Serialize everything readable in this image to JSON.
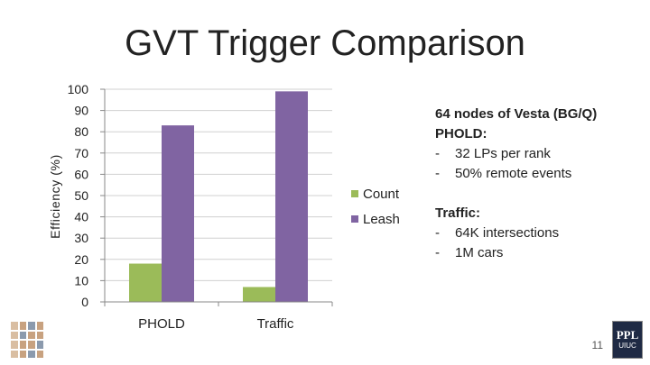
{
  "slide": {
    "title": "GVT Trigger Comparison",
    "page_number": "11"
  },
  "notes": {
    "heading1": "64 nodes of Vesta (BG/Q)",
    "heading2": "PHOLD:",
    "phold_items": [
      "32 LPs per rank",
      "50% remote events"
    ],
    "heading3": "Traffic:",
    "traffic_items": [
      "64K intersections",
      "1M cars"
    ]
  },
  "logos": {
    "right_line1": "PPL",
    "right_line2": "UIUC"
  },
  "chart_data": {
    "type": "bar",
    "title": "GVT Trigger Comparison",
    "ylabel": "Efficiency (%)",
    "xlabel": "",
    "categories": [
      "PHOLD",
      "Traffic"
    ],
    "ylim": [
      0,
      100
    ],
    "yticks": [
      0,
      10,
      20,
      30,
      40,
      50,
      60,
      70,
      80,
      90,
      100
    ],
    "grid": true,
    "legend_position": "right",
    "series": [
      {
        "name": "Count",
        "color": "#9bbb59",
        "values": [
          18,
          7
        ]
      },
      {
        "name": "Leash",
        "color": "#8064a2",
        "values": [
          83,
          99
        ]
      }
    ]
  }
}
